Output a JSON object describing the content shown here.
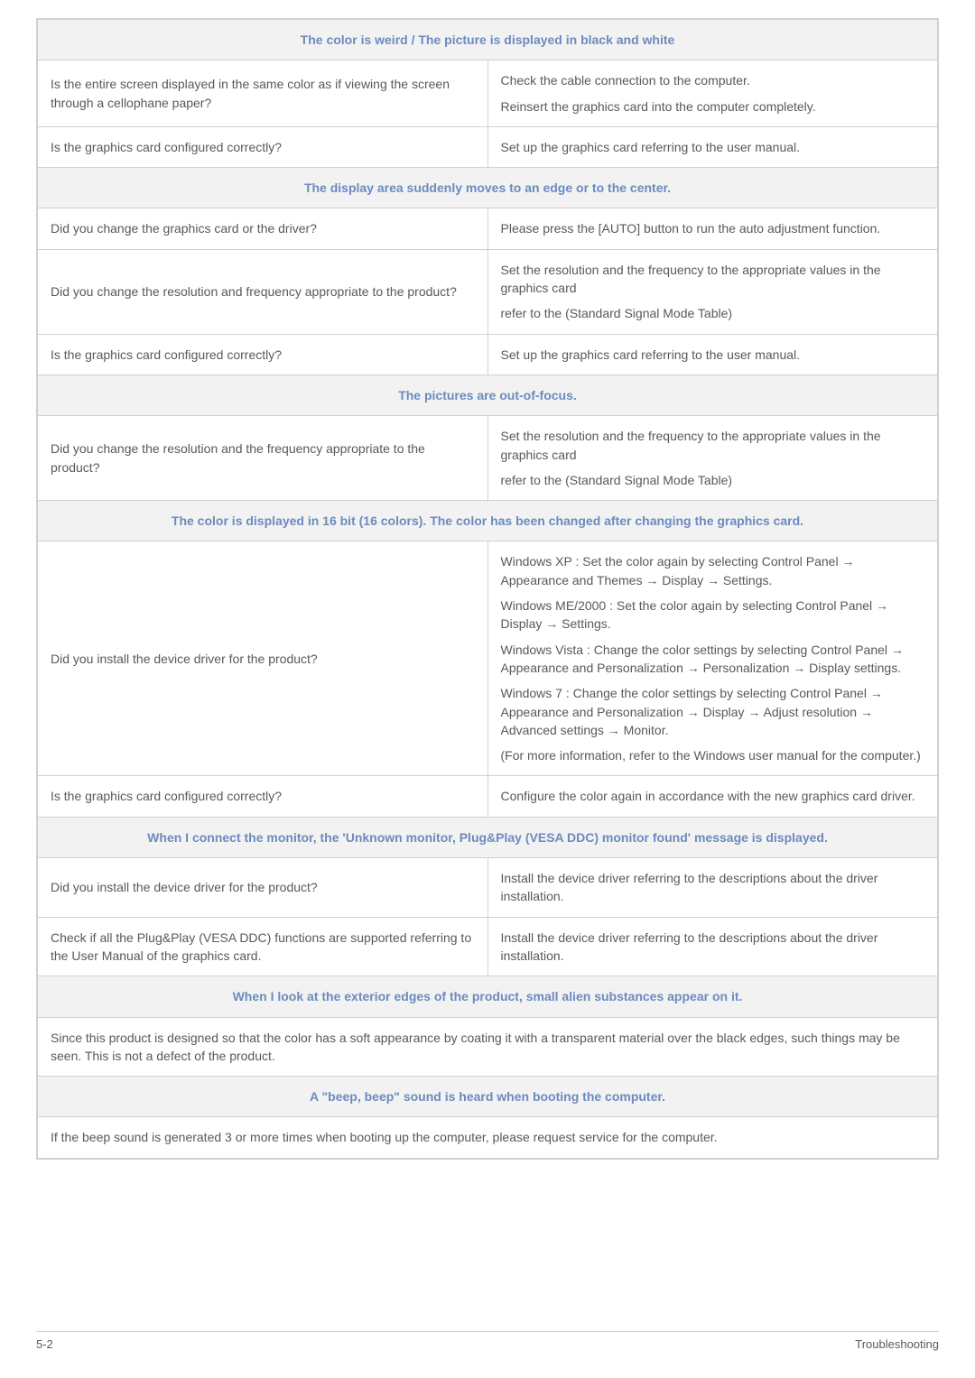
{
  "sections": [
    {
      "header": "The color is weird / The picture is displayed in black and white",
      "rows": [
        {
          "q": "Is the entire screen displayed in the same color as if viewing the screen through a cellophane paper?",
          "a": [
            "Check the cable connection to the computer.",
            "Reinsert the graphics card into the computer completely."
          ]
        },
        {
          "q": "Is the graphics card configured correctly?",
          "a": [
            "Set up the graphics card referring to the user manual."
          ]
        }
      ]
    },
    {
      "header": "The display area suddenly moves to an edge or to the center.",
      "rows": [
        {
          "q": "Did you change the graphics card or the driver?",
          "a": [
            "Please press the [AUTO] button to run the auto adjustment function."
          ]
        },
        {
          "q": "Did you change the resolution and frequency appropriate to the product?",
          "a": [
            "Set the resolution and the frequency to the appropriate values in the graphics card",
            "refer to the (Standard Signal Mode Table)"
          ]
        },
        {
          "q": "Is the graphics card configured correctly?",
          "a": [
            "Set up the graphics card referring to the user manual."
          ]
        }
      ]
    },
    {
      "header": "The pictures are out-of-focus.",
      "rows": [
        {
          "q": "Did you change the resolution and the frequency appropriate to the product?",
          "a": [
            "Set the resolution and the frequency to the appropriate values in the graphics card",
            "refer to the (Standard Signal Mode Table)"
          ]
        }
      ]
    },
    {
      "header": "The color is displayed in 16 bit (16 colors). The color has been changed after changing the graphics card.",
      "rows": [
        {
          "q": "Did you install the device driver for the product?",
          "a": [
            "Windows XP : Set the color again by selecting Control Panel → Appearance and Themes → Display → Settings.",
            "Windows ME/2000 : Set the color again by selecting Control Panel → Display → Settings.",
            "Windows Vista : Change the color settings by selecting Control Panel → Appearance and Personalization → Personalization → Display settings.",
            "Windows 7 : Change the color settings by selecting Control Panel → Appearance and Personalization → Display → Adjust resolution → Advanced settings → Monitor.",
            "(For more information, refer to the Windows user manual for the computer.)"
          ]
        },
        {
          "q": "Is the graphics card configured correctly?",
          "a": [
            "Configure the color again in accordance with the new graphics card driver."
          ]
        }
      ]
    },
    {
      "header": "When I connect the monitor, the 'Unknown monitor, Plug&Play (VESA DDC) monitor found' message is displayed.",
      "rows": [
        {
          "q": "Did you install the device driver for the product?",
          "a": [
            "Install the device driver referring to the descriptions about the driver installation."
          ]
        },
        {
          "q": "Check if all the Plug&Play (VESA DDC) functions are supported referring to the User Manual of the graphics card.",
          "a": [
            "Install the device driver referring to the descriptions about the driver installation."
          ]
        }
      ]
    },
    {
      "header": "When I look at the exterior edges of the product, small alien substances appear on it.",
      "full": "Since this product is designed so that the color has a soft appearance by coating it with a transparent material over the black edges, such things may be seen. This is not a defect of the product."
    },
    {
      "header": "A \"beep, beep\" sound is heard when booting the computer.",
      "full": "If the beep sound is generated 3 or more times when booting up the computer, please request service for the computer."
    }
  ],
  "footer": {
    "left": "5-2",
    "right": "Troubleshooting"
  },
  "colors": {
    "header_bg": "#f2f2f2",
    "header_text": "#6b8bbf",
    "border": "#d0d0d0",
    "body_text": "#595959",
    "bg": "#ffffff"
  }
}
